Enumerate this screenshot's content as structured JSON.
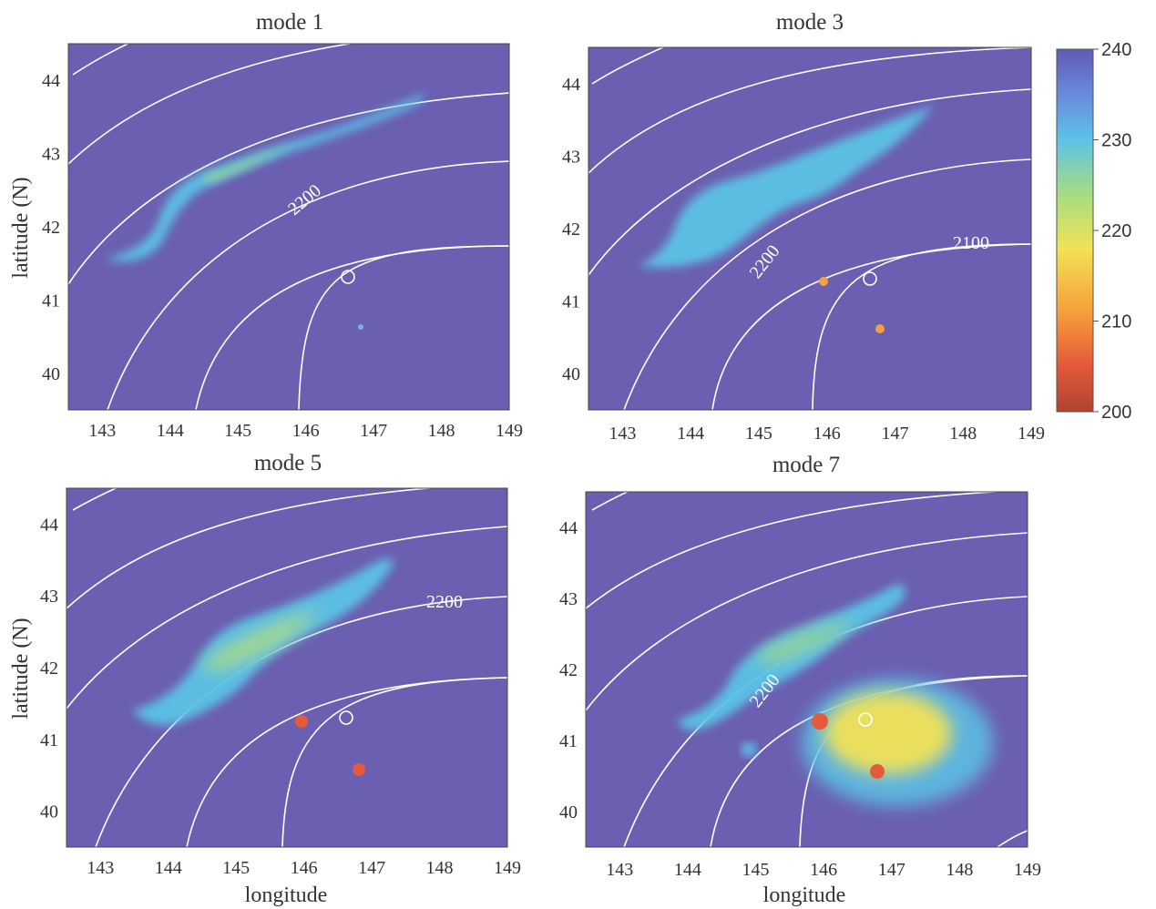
{
  "figure": {
    "colorbar": {
      "ticks": [
        "240",
        "230",
        "220",
        "210",
        "200"
      ],
      "range": [
        200,
        240
      ],
      "colors": [
        "#b04330",
        "#e45a3a",
        "#f6a13a",
        "#f2e256",
        "#a6dc82",
        "#5cc3e6",
        "#6b87dd",
        "#5f5bb1"
      ]
    },
    "background_color": "#6b5fb1",
    "contour_color": "#ffffff",
    "x_ticks": [
      "143",
      "144",
      "145",
      "146",
      "147",
      "148",
      "149"
    ],
    "y_ticks": [
      "44",
      "43",
      "42",
      "41",
      "40"
    ],
    "xlim": [
      142.5,
      149
    ],
    "ylim": [
      39.5,
      44.5
    ],
    "xlabel": "longitude",
    "ylabel": "latitude (N)",
    "station_marker": {
      "lon": 146.65,
      "lat": 41.3
    },
    "panels": [
      {
        "title": "mode 1",
        "contour_labels": [
          "2200"
        ],
        "features": [
          {
            "kind": "plume",
            "desc": "elongated cold band",
            "color": "#5cc3e6"
          },
          {
            "kind": "core",
            "color": "#a6dc82"
          },
          {
            "kind": "spot",
            "lon": 146.8,
            "lat": 40.6,
            "color": "#7fb0e8"
          }
        ]
      },
      {
        "title": "mode 3",
        "contour_labels": [
          "2200",
          "2100"
        ],
        "features": [
          {
            "kind": "plume",
            "color": "#5cc3e6"
          },
          {
            "kind": "spot",
            "lon": 146.0,
            "lat": 41.28,
            "color": "#f2a13a"
          },
          {
            "kind": "spot",
            "lon": 146.85,
            "lat": 40.6,
            "color": "#f2a13a"
          }
        ]
      },
      {
        "title": "mode 5",
        "contour_labels": [
          "2200"
        ],
        "features": [
          {
            "kind": "plume",
            "color": "#5cc3e6"
          },
          {
            "kind": "core",
            "color": "#b9e07a"
          },
          {
            "kind": "spot",
            "lon": 146.0,
            "lat": 41.28,
            "color": "#e45a3a"
          },
          {
            "kind": "spot",
            "lon": 146.9,
            "lat": 40.58,
            "color": "#e45a3a"
          }
        ]
      },
      {
        "title": "mode 7",
        "contour_labels": [
          "2200"
        ],
        "features": [
          {
            "kind": "plume",
            "color": "#5cc3e6"
          },
          {
            "kind": "blob",
            "desc": "broad warm patch",
            "color": "#f2e256"
          },
          {
            "kind": "spot",
            "lon": 146.0,
            "lat": 41.25,
            "color": "#e45a3a"
          },
          {
            "kind": "spot",
            "lon": 146.75,
            "lat": 40.55,
            "color": "#e45a3a"
          }
        ]
      }
    ]
  }
}
